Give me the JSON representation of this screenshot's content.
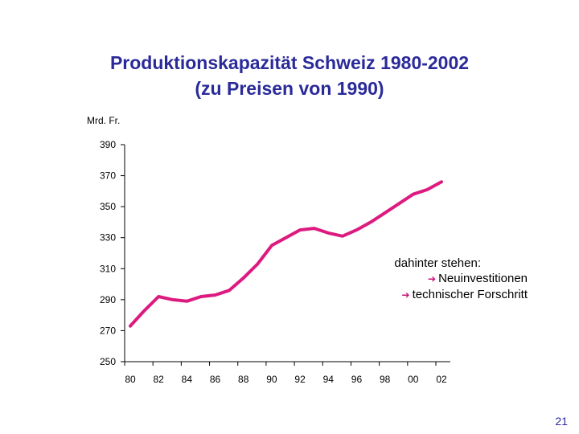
{
  "title_line1": "Produktionskapazität Schweiz 1980-2002",
  "title_line2": "(zu Preisen von 1990)",
  "unit_label": "Mrd. Fr.",
  "annotation": {
    "heading": "dahinter stehen:",
    "items": [
      "Neuinvestitionen",
      "technischer Forschritt"
    ],
    "bullet_icon": "right-arrow-icon",
    "bullet_color": "#cc1177"
  },
  "page_number": "21",
  "colors": {
    "title": "#2a2a9a",
    "line": "#dd1a7f"
  },
  "chart_data": {
    "type": "line",
    "title": "Produktionskapazität Schweiz 1980-2002 (zu Preisen von 1990)",
    "ylabel": "Mrd. Fr.",
    "xlabel": "",
    "ylim": [
      250,
      390
    ],
    "xlim": [
      1980,
      2002
    ],
    "y_ticks": [
      "390",
      "370",
      "350",
      "330",
      "310",
      "290",
      "270",
      "250"
    ],
    "x_ticks": [
      "80",
      "82",
      "84",
      "86",
      "88",
      "90",
      "92",
      "94",
      "96",
      "98",
      "00",
      "02"
    ],
    "grid": false,
    "series": [
      {
        "color": "#dd1a7f",
        "x": [
          1980,
          1981,
          1982,
          1983,
          1984,
          1985,
          1986,
          1987,
          1988,
          1989,
          1990,
          1991,
          1992,
          1993,
          1994,
          1995,
          1996,
          1997,
          1998,
          1999,
          2000,
          2001,
          2002
        ],
        "values": [
          273,
          283,
          292,
          290,
          289,
          292,
          293,
          296,
          304,
          313,
          325,
          330,
          335,
          336,
          333,
          331,
          335,
          340,
          346,
          352,
          358,
          361,
          366
        ]
      }
    ]
  }
}
